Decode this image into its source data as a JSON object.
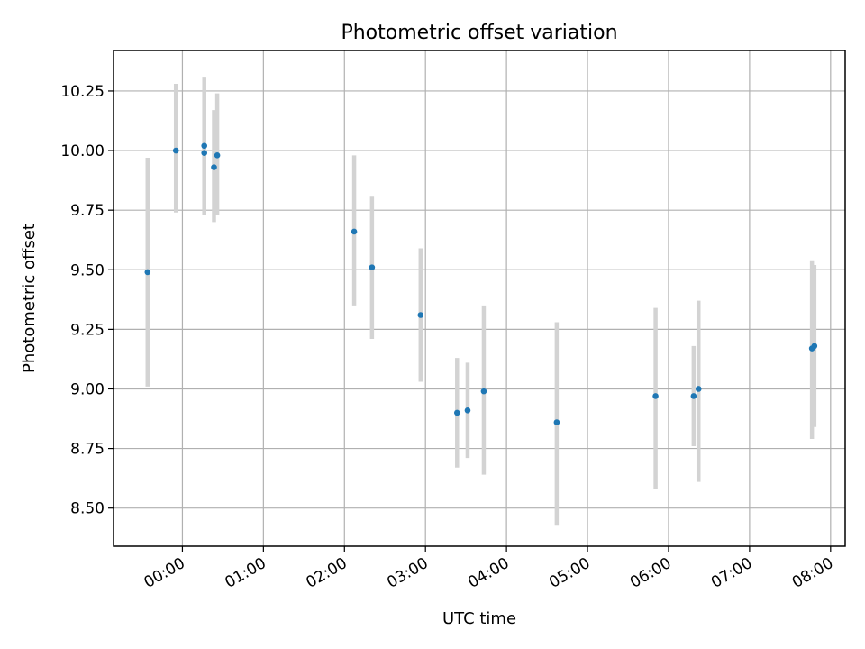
{
  "chart_data": {
    "type": "scatter",
    "title": "Photometric offset variation",
    "xlabel": "UTC time",
    "ylabel": "Photometric offset",
    "x_unit": "hours",
    "x_ticks": [
      {
        "value": 0,
        "label": "00:00"
      },
      {
        "value": 1,
        "label": "01:00"
      },
      {
        "value": 2,
        "label": "02:00"
      },
      {
        "value": 3,
        "label": "03:00"
      },
      {
        "value": 4,
        "label": "04:00"
      },
      {
        "value": 5,
        "label": "05:00"
      },
      {
        "value": 6,
        "label": "06:00"
      },
      {
        "value": 7,
        "label": "07:00"
      },
      {
        "value": 8,
        "label": "08:00"
      }
    ],
    "y_ticks": [
      {
        "value": 8.5,
        "label": "8.50"
      },
      {
        "value": 8.75,
        "label": "8.75"
      },
      {
        "value": 9.0,
        "label": "9.00"
      },
      {
        "value": 9.25,
        "label": "9.25"
      },
      {
        "value": 9.5,
        "label": "9.50"
      },
      {
        "value": 9.75,
        "label": "9.75"
      },
      {
        "value": 10.0,
        "label": "10.00"
      },
      {
        "value": 10.25,
        "label": "10.25"
      }
    ],
    "xlim": [
      -0.85,
      8.18
    ],
    "ylim": [
      8.34,
      10.42
    ],
    "grid": true,
    "legend": false,
    "colors": {
      "point": "#1f77b4",
      "errorbar": "#d3d3d3",
      "grid": "#b0b0b0"
    },
    "points": [
      {
        "x": -0.43,
        "y": 9.49,
        "err_low": 9.01,
        "err_high": 9.97
      },
      {
        "x": -0.08,
        "y": 10.0,
        "err_low": 9.74,
        "err_high": 10.28
      },
      {
        "x": 0.27,
        "y": 10.02,
        "err_low": 9.73,
        "err_high": 10.31
      },
      {
        "x": 0.27,
        "y": 9.99,
        "err_low": 9.73,
        "err_high": 10.25
      },
      {
        "x": 0.39,
        "y": 9.93,
        "err_low": 9.7,
        "err_high": 10.17
      },
      {
        "x": 0.43,
        "y": 9.98,
        "err_low": 9.73,
        "err_high": 10.24
      },
      {
        "x": 2.12,
        "y": 9.66,
        "err_low": 9.35,
        "err_high": 9.98
      },
      {
        "x": 2.34,
        "y": 9.51,
        "err_low": 9.21,
        "err_high": 9.81
      },
      {
        "x": 2.94,
        "y": 9.31,
        "err_low": 9.03,
        "err_high": 9.59
      },
      {
        "x": 3.39,
        "y": 8.9,
        "err_low": 8.67,
        "err_high": 9.13
      },
      {
        "x": 3.52,
        "y": 8.91,
        "err_low": 8.71,
        "err_high": 9.11
      },
      {
        "x": 3.72,
        "y": 8.99,
        "err_low": 8.64,
        "err_high": 9.35
      },
      {
        "x": 4.62,
        "y": 8.86,
        "err_low": 8.43,
        "err_high": 9.28
      },
      {
        "x": 5.84,
        "y": 8.97,
        "err_low": 8.58,
        "err_high": 9.34
      },
      {
        "x": 6.31,
        "y": 8.97,
        "err_low": 8.76,
        "err_high": 9.18
      },
      {
        "x": 6.37,
        "y": 9.0,
        "err_low": 8.61,
        "err_high": 9.37
      },
      {
        "x": 7.77,
        "y": 9.17,
        "err_low": 8.79,
        "err_high": 9.54
      },
      {
        "x": 7.8,
        "y": 9.18,
        "err_low": 8.84,
        "err_high": 9.52
      }
    ]
  }
}
